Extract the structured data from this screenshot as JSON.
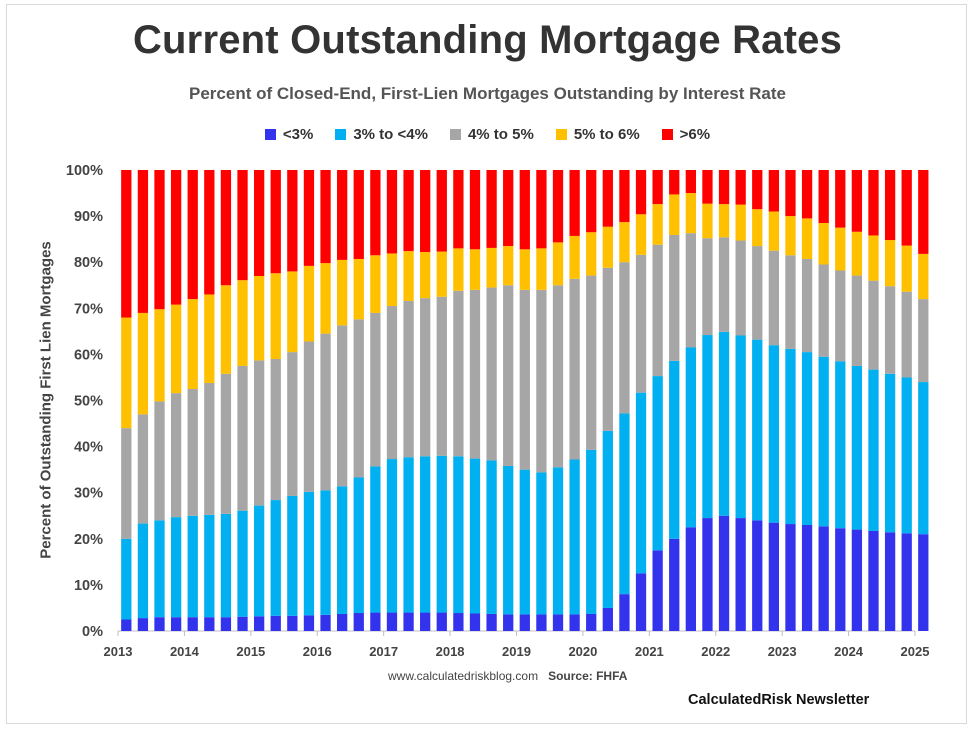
{
  "chart_data": {
    "type": "bar",
    "stacked": true,
    "title": "Current Outstanding Mortgage Rates",
    "subtitle": "Percent of Closed-End, First-Lien Mortgages Outstanding by Interest Rate",
    "ylabel": "Percent of Outstanding First Lien Mortgages",
    "xlabel": "",
    "ylim": [
      0,
      100
    ],
    "yticks": [
      "0%",
      "10%",
      "20%",
      "30%",
      "40%",
      "50%",
      "60%",
      "70%",
      "80%",
      "90%",
      "100%"
    ],
    "xticks": [
      "2013",
      "2014",
      "2015",
      "2016",
      "2017",
      "2018",
      "2019",
      "2020",
      "2021",
      "2022",
      "2023",
      "2024",
      "2025"
    ],
    "x_start": 2013,
    "periods_per_year": 4,
    "legend_position": "top",
    "series": [
      {
        "name": "<3%",
        "color": "#3333ee",
        "values": [
          2.5,
          2.8,
          3,
          3,
          3,
          3,
          3,
          3.1,
          3.2,
          3.3,
          3.3,
          3.4,
          3.5,
          3.7,
          3.9,
          4,
          4,
          4,
          4,
          4,
          3.9,
          3.8,
          3.7,
          3.6,
          3.6,
          3.6,
          3.6,
          3.6,
          3.7,
          5,
          8,
          12.5,
          17.5,
          20,
          22.5,
          24.5,
          25,
          24.5,
          24,
          23.5,
          23.2,
          23,
          22.7,
          22.3,
          22,
          21.7,
          21.4,
          21.2,
          21
        ]
      },
      {
        "name": "3% to <4%",
        "color": "#00b0f0",
        "values": [
          17.5,
          20.5,
          21,
          21.7,
          22,
          22.2,
          22.4,
          23,
          24,
          25.1,
          26,
          26.8,
          27,
          27.7,
          29.4,
          31.7,
          33.3,
          33.7,
          33.9,
          34,
          34,
          33.6,
          33.3,
          32.2,
          31.4,
          30.8,
          31.9,
          33.6,
          35.6,
          38.4,
          39.2,
          39.2,
          37.8,
          38.6,
          39,
          39.7,
          39.9,
          39.6,
          39.2,
          38.5,
          38,
          37.5,
          36.8,
          36.2,
          35.5,
          35,
          34.4,
          33.8,
          33
        ]
      },
      {
        "name": "4% to 5%",
        "color": "#a6a6a6",
        "values": [
          24,
          23.7,
          25.8,
          26.9,
          27.5,
          28.6,
          30.4,
          31.4,
          31.5,
          30.6,
          31.2,
          32.6,
          34,
          34.9,
          34.3,
          33.3,
          33.2,
          33.9,
          34.3,
          34.5,
          35.9,
          36.6,
          37.5,
          39.2,
          39,
          39.6,
          39.5,
          39.2,
          37.8,
          35.4,
          32.8,
          29.9,
          28.5,
          27.3,
          24.8,
          21,
          20.5,
          20.6,
          20.3,
          20.5,
          20.3,
          20.2,
          20,
          19.7,
          19.6,
          19.3,
          19,
          18.6,
          18
        ]
      },
      {
        "name": "5% to 6%",
        "color": "#ffc000",
        "values": [
          24,
          22,
          20,
          19.2,
          19.5,
          19.2,
          19.2,
          18.6,
          18.3,
          18.6,
          17.5,
          16.4,
          15.3,
          14.2,
          13.1,
          12.5,
          11.4,
          10.8,
          10,
          9.8,
          9.2,
          8.8,
          8.6,
          8.5,
          8.8,
          9,
          9.3,
          9.3,
          9.4,
          8.9,
          8.7,
          8.8,
          8.8,
          8.8,
          8.7,
          7.5,
          7.2,
          7.8,
          8,
          8.5,
          8.5,
          8.8,
          9,
          9.3,
          9.5,
          9.8,
          10,
          10,
          9.8
        ]
      },
      {
        "name": ">6%",
        "color": "#ff0000",
        "values": [
          32,
          31,
          30.2,
          29.2,
          28,
          27,
          25,
          23.9,
          23,
          22.4,
          22,
          20.8,
          20.2,
          19.5,
          19.3,
          18.5,
          18.1,
          17.6,
          17.8,
          17.7,
          17,
          17.2,
          16.9,
          16.5,
          17.2,
          17,
          15.7,
          14.3,
          13.5,
          12.3,
          11.3,
          9.6,
          7.4,
          5.3,
          5,
          7.3,
          7.4,
          7.5,
          8.5,
          9,
          10,
          10.5,
          11.5,
          12.5,
          13.4,
          14.2,
          15.2,
          16.4,
          18.2
        ]
      }
    ]
  },
  "legend": [
    "<3%",
    "3% to <4%",
    "4% to 5%",
    "5% to 6%",
    ">6%"
  ],
  "credit": {
    "site": "www.calculatedriskblog.com",
    "source": "Source: FHFA"
  },
  "brand": "CalculatedRisk Newsletter"
}
